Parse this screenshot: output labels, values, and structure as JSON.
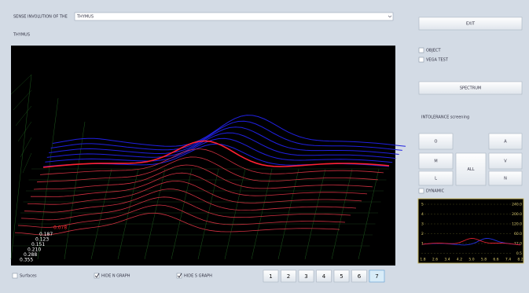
{
  "header": {
    "label": "SENSE INVOLUTION OF THE",
    "selection": "THYMUS"
  },
  "graph": {
    "title": "THYMUS",
    "depth_labels": [
      "0.355",
      "0.288",
      "0.210",
      "0.151",
      "0.123",
      "0.187"
    ],
    "highlight_label": "0.078"
  },
  "controls": {
    "surfaces": "Surfaces",
    "hide_n": "HIDE N GRAPH",
    "hide_s": "HIDE S GRAPH",
    "pages": [
      "1",
      "2",
      "3",
      "4",
      "5",
      "6",
      "7"
    ]
  },
  "side": {
    "exit": "EXIT",
    "object": "OBJECT",
    "vega_test": "VEGA TEST",
    "spectrum": "SPECTRUM",
    "intolerance": "INTOLERANCE screening",
    "buttons": {
      "o": "O",
      "a": "A",
      "m": "M",
      "v": "V",
      "l": "L",
      "n": "N",
      "all": "ALL"
    },
    "dynamic": "DYNAMIC"
  },
  "mini_chart": {
    "left_labels": [
      "5",
      "4",
      "3",
      "2",
      "1"
    ],
    "right_labels": [
      "240.0",
      "200.0",
      "120.0",
      "60.0",
      "12.0",
      "0.5"
    ],
    "x_labels": [
      "1.8",
      "2.6",
      "3.4",
      "4.2",
      "5.0",
      "5.8",
      "6.6",
      "7.4",
      "8.2"
    ]
  }
}
